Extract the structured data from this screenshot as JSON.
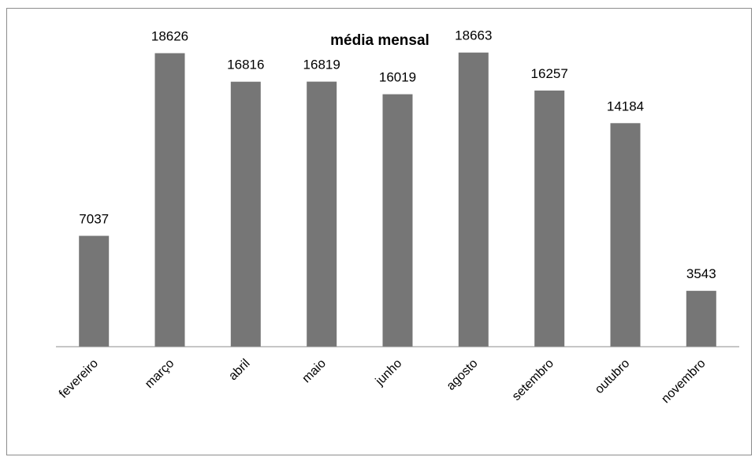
{
  "chart_data": {
    "type": "bar",
    "title": "média mensal",
    "xlabel": "",
    "ylabel": "",
    "categories": [
      "fevereiro",
      "março",
      "abril",
      "maio",
      "junho",
      "agosto",
      "setembro",
      "outubro",
      "novembro"
    ],
    "values": [
      7037,
      18626,
      16816,
      16819,
      16019,
      18663,
      16257,
      14184,
      3543
    ],
    "ylim": [
      0,
      20000
    ],
    "bar_color": "#767676",
    "axis_color": "#8c8c8c",
    "grid": false,
    "legend": "none",
    "data_labels": true
  }
}
